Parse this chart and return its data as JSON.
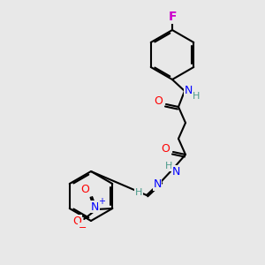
{
  "background_color": "#e8e8e8",
  "bond_color": "#000000",
  "atom_colors": {
    "C": "#000000",
    "H": "#4a9a8a",
    "N": "#0000ff",
    "O": "#ff0000",
    "F": "#cc00cc"
  },
  "figsize": [
    3.0,
    3.0
  ],
  "dpi": 100
}
